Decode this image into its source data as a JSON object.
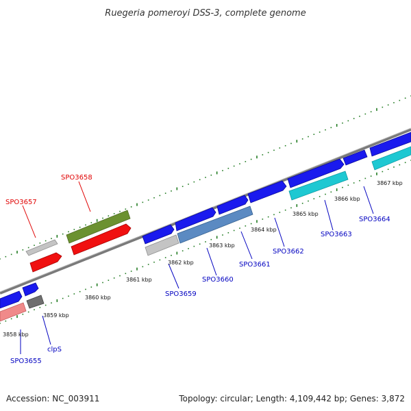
{
  "title": "Ruegeria pomeroyi DSS-3, complete genome",
  "footer": {
    "accession": "Accession: NC_003911",
    "summary": "Topology: circular; Length: 4,109,442 bp; Genes: 3,872"
  },
  "colors": {
    "backbone": "#7a7a7a",
    "tick": "#1f7a1f",
    "label_forward": "#e00000",
    "label_reverse": "#0000c0",
    "blue": "#1a1aee",
    "gray": "#b8b8b8",
    "red": "#ee1111",
    "olive": "#6a8f2a",
    "steel": "#5b8ac2",
    "cyan": "#1ec8d2",
    "salmon": "#f08a8a",
    "darkgray": "#707070"
  },
  "ticks": [
    "3858 kbp",
    "3859 kbp",
    "3860 kbp",
    "3861 kbp",
    "3862 kbp",
    "3863 kbp",
    "3864 kbp",
    "3865 kbp",
    "3866 kbp",
    "3867 kbp"
  ],
  "gene_labels": {
    "spo3655": "SPO3655",
    "clps": "clpS",
    "spo3657": "SPO3657",
    "spo3658": "SPO3658",
    "spo3659": "SPO3659",
    "spo3660": "SPO3660",
    "spo3661": "SPO3661",
    "spo3662": "SPO3662",
    "spo3663": "SPO3663",
    "spo3664": "SPO3664"
  }
}
